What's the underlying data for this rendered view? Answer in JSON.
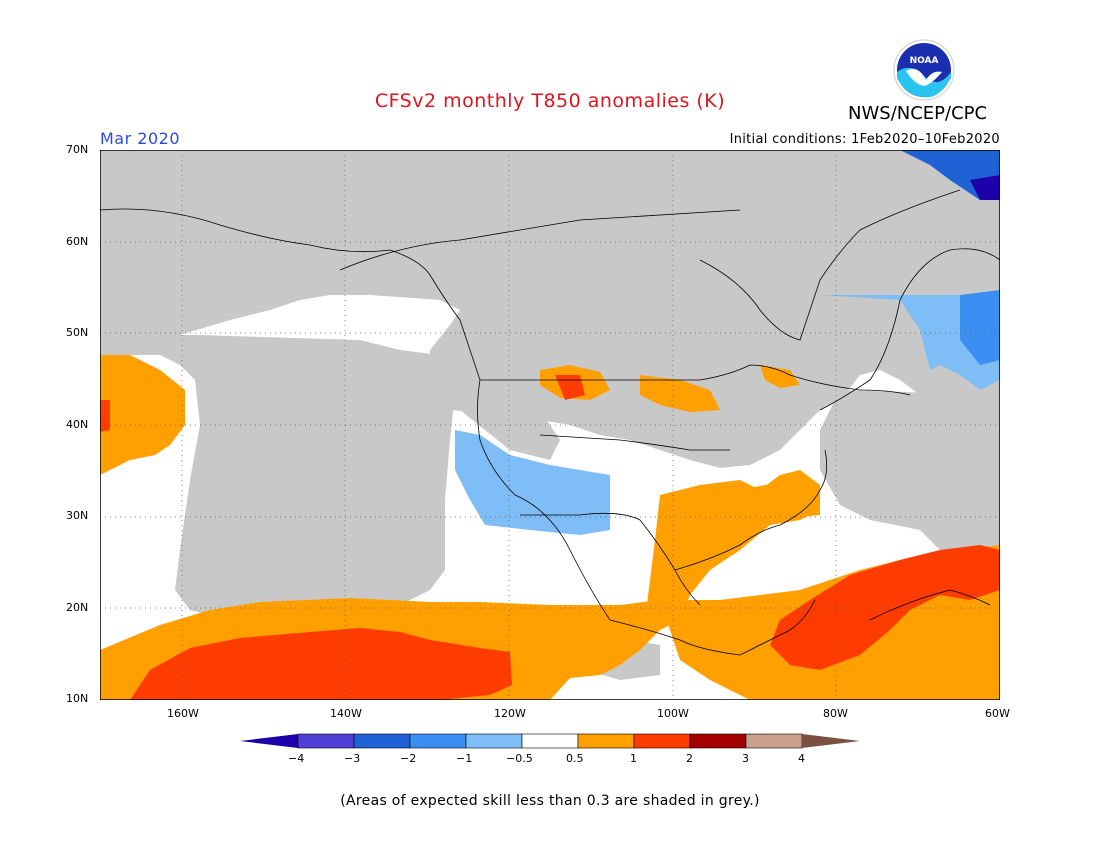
{
  "title": "CFSv2 monthly T850 anomalies (K)",
  "agency": "NWS/NCEP/CPC",
  "logo_text": "NOAA",
  "forecast_month": "Mar 2020",
  "initial_conditions": "Initial conditions: 1Feb2020–10Feb2020",
  "footnote": "(Areas of expected skill less than 0.3 are shaded in grey.)",
  "lat_labels": [
    "70N",
    "60N",
    "50N",
    "40N",
    "30N",
    "20N",
    "10N"
  ],
  "lon_labels": [
    "160W",
    "140W",
    "120W",
    "100W",
    "80W",
    "60W"
  ],
  "colorbar": {
    "ticks": [
      "−4",
      "−3",
      "−2",
      "−1",
      "−0.5",
      "0.5",
      "1",
      "2",
      "3",
      "4"
    ],
    "colors": [
      "#1e00a8",
      "#4f3fd6",
      "#1f62d6",
      "#3c8ff2",
      "#7fbdf7",
      "#ffffff",
      "#ffa000",
      "#ff3c00",
      "#a30000",
      "#c8a08c",
      "#7a5040"
    ]
  },
  "map": {
    "domain": "North America",
    "lat_range": [
      10,
      70
    ],
    "lon_range": [
      -170,
      -60
    ],
    "no_skill_color": "#c8c8c8"
  }
}
